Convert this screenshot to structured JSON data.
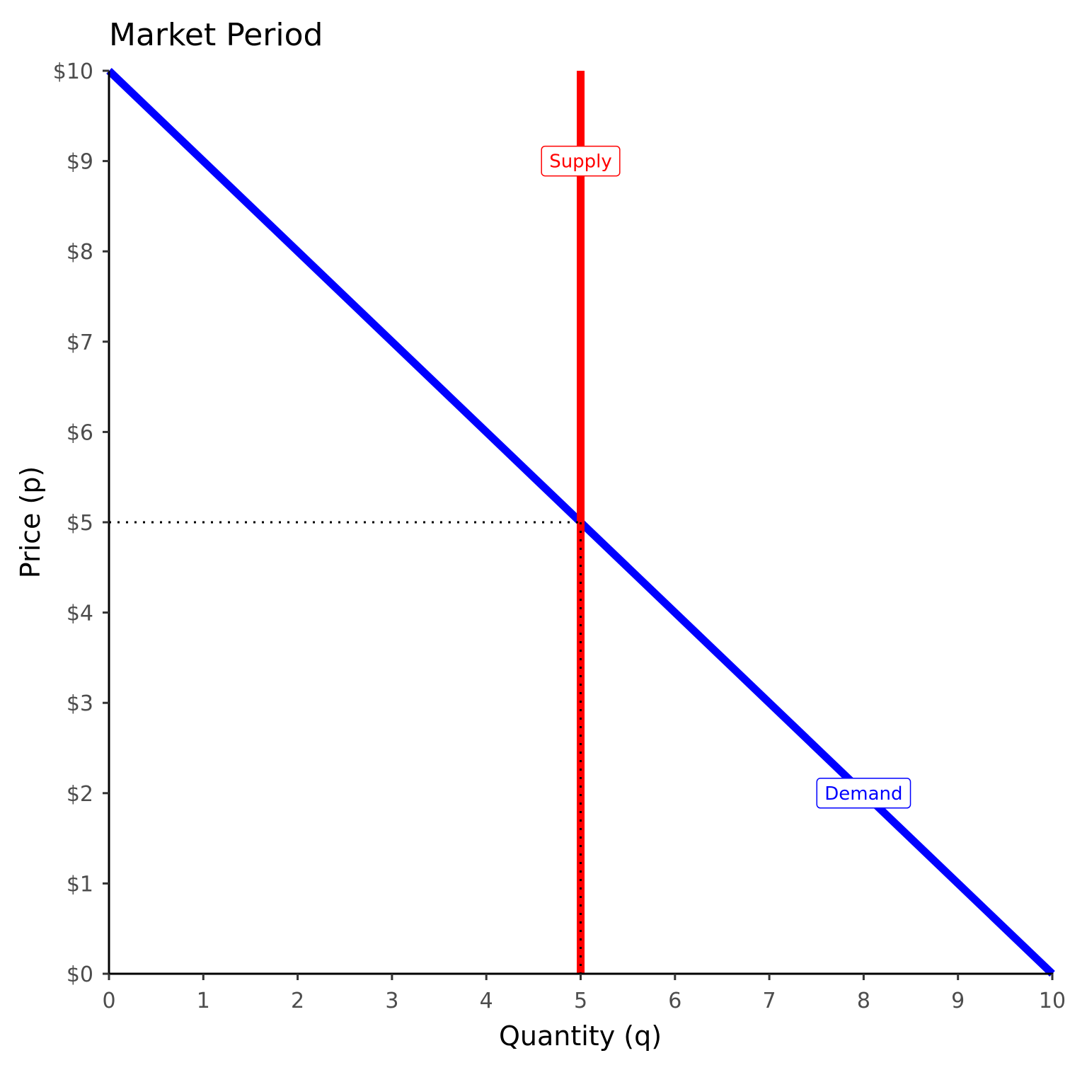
{
  "chart_data": {
    "type": "line",
    "title": "Market Period",
    "xlabel": "Quantity (q)",
    "ylabel": "Price (p)",
    "xlim": [
      0,
      10
    ],
    "ylim": [
      0,
      10
    ],
    "x_ticks": [
      0,
      1,
      2,
      3,
      4,
      5,
      6,
      7,
      8,
      9,
      10
    ],
    "x_tick_labels": [
      "0",
      "1",
      "2",
      "3",
      "4",
      "5",
      "6",
      "7",
      "8",
      "9",
      "10"
    ],
    "y_ticks": [
      0,
      1,
      2,
      3,
      4,
      5,
      6,
      7,
      8,
      9,
      10
    ],
    "y_tick_labels": [
      "$0",
      "$1",
      "$2",
      "$3",
      "$4",
      "$5",
      "$6",
      "$7",
      "$8",
      "$9",
      "$10"
    ],
    "grid": false,
    "series": [
      {
        "name": "Demand",
        "color": "#0000ff",
        "x": [
          0,
          10
        ],
        "y": [
          10,
          0
        ],
        "label_at": [
          8,
          2
        ]
      },
      {
        "name": "Supply",
        "color": "#ff0000",
        "x": [
          5,
          5
        ],
        "y": [
          0,
          10
        ],
        "label_at": [
          5,
          9
        ]
      }
    ],
    "equilibrium": {
      "x": 5,
      "y": 5,
      "style": "dotted"
    }
  }
}
